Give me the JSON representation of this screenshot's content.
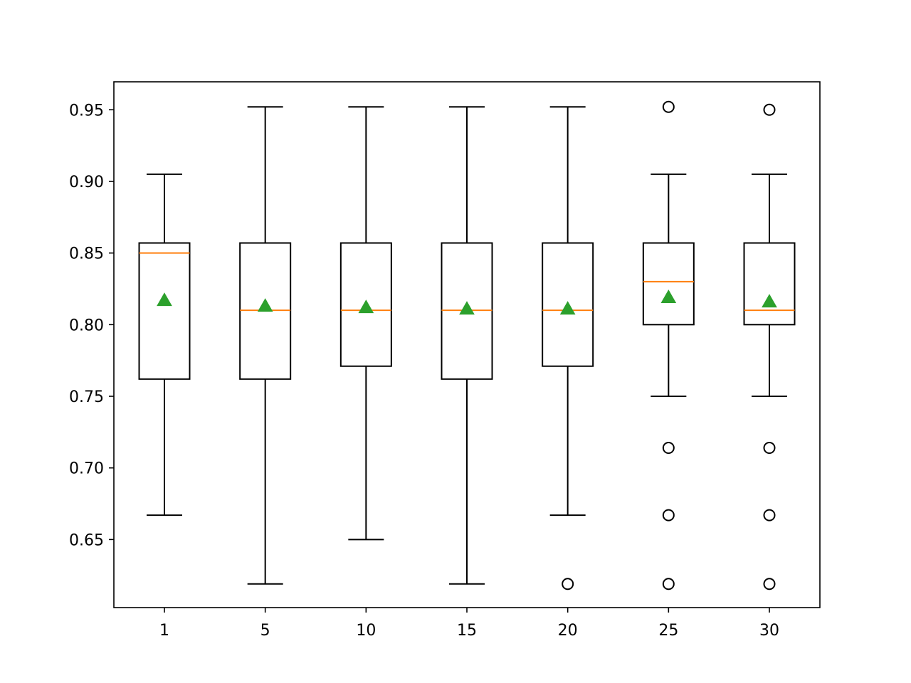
{
  "chart_data": {
    "type": "box",
    "categories": [
      "1",
      "5",
      "10",
      "15",
      "20",
      "25",
      "30"
    ],
    "boxes": [
      {
        "whisker_low": 0.667,
        "q1": 0.762,
        "median": 0.85,
        "q3": 0.857,
        "whisker_high": 0.905,
        "mean": 0.817,
        "outliers": []
      },
      {
        "whisker_low": 0.619,
        "q1": 0.762,
        "median": 0.81,
        "q3": 0.857,
        "whisker_high": 0.952,
        "mean": 0.813,
        "outliers": []
      },
      {
        "whisker_low": 0.65,
        "q1": 0.771,
        "median": 0.81,
        "q3": 0.857,
        "whisker_high": 0.952,
        "mean": 0.812,
        "outliers": []
      },
      {
        "whisker_low": 0.619,
        "q1": 0.762,
        "median": 0.81,
        "q3": 0.857,
        "whisker_high": 0.952,
        "mean": 0.811,
        "outliers": []
      },
      {
        "whisker_low": 0.667,
        "q1": 0.771,
        "median": 0.81,
        "q3": 0.857,
        "whisker_high": 0.952,
        "mean": 0.811,
        "outliers": [
          0.619
        ]
      },
      {
        "whisker_low": 0.75,
        "q1": 0.8,
        "median": 0.83,
        "q3": 0.857,
        "whisker_high": 0.905,
        "mean": 0.819,
        "outliers": [
          0.952,
          0.714,
          0.667,
          0.619
        ]
      },
      {
        "whisker_low": 0.75,
        "q1": 0.8,
        "median": 0.81,
        "q3": 0.857,
        "whisker_high": 0.905,
        "mean": 0.816,
        "outliers": [
          0.95,
          0.714,
          0.667,
          0.619
        ]
      }
    ],
    "title": "",
    "xlabel": "",
    "ylabel": "",
    "ylim": [
      0.6025,
      0.9695
    ],
    "yticks": [
      "0.65",
      "0.70",
      "0.75",
      "0.80",
      "0.85",
      "0.90",
      "0.95"
    ],
    "grid": false,
    "colors": {
      "box": "#000000",
      "median": "#ff7f0e",
      "mean_marker": "#2ca02c",
      "outlier": "#000000"
    }
  }
}
